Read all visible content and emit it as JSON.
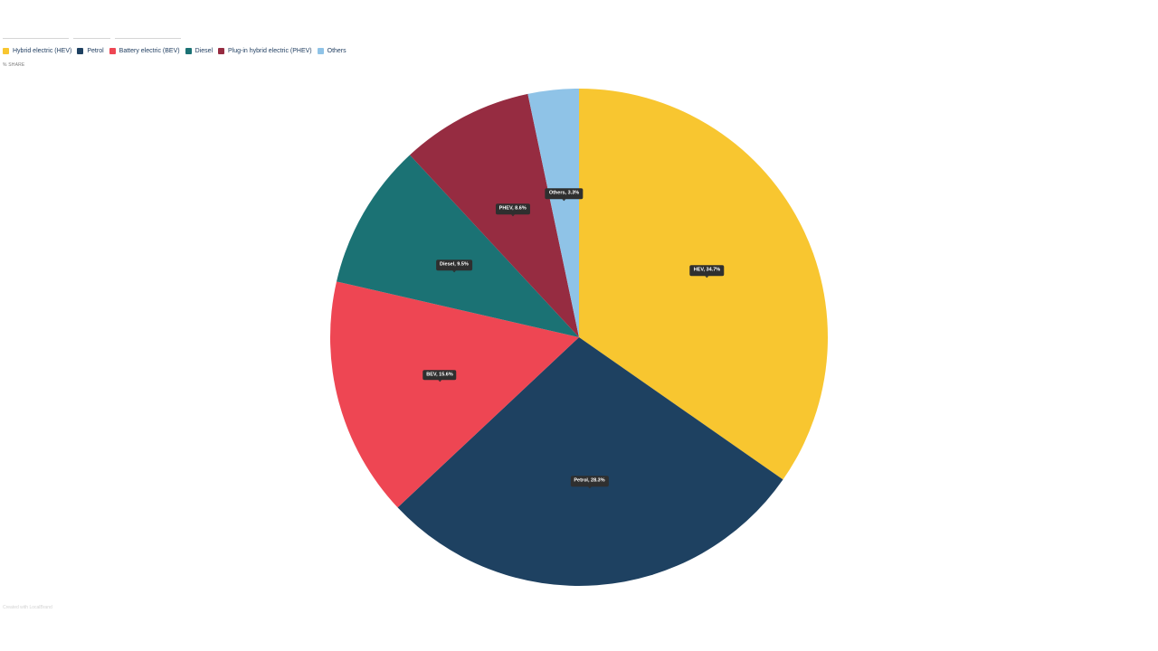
{
  "colors": {
    "hev": "#f8c630",
    "petrol": "#1e4161",
    "bev": "#ee4653",
    "diesel": "#1b7274",
    "phev": "#962c41",
    "others": "#8fc3e7",
    "legend_text": "#1d3b5e"
  },
  "unit_label": "% SHARE",
  "credit": "Created with LocalBrand",
  "chart_data": {
    "type": "pie",
    "title": "",
    "legend_position": "top-left",
    "unit": "% SHARE",
    "slices": [
      {
        "key": "hev",
        "legend": "Hybrid electric (HEV)",
        "label": "HEV, 34.7%",
        "value": 34.7,
        "color": "#f8c630"
      },
      {
        "key": "petrol",
        "legend": "Petrol",
        "label": "Petrol, 28.3%",
        "value": 28.3,
        "color": "#1e4161"
      },
      {
        "key": "bev",
        "legend": "Battery electric (BEV)",
        "label": "BEV, 15.6%",
        "value": 15.6,
        "color": "#ee4653"
      },
      {
        "key": "diesel",
        "legend": "Diesel",
        "label": "Diesel, 9.5%",
        "value": 9.5,
        "color": "#1b7274"
      },
      {
        "key": "phev",
        "legend": "Plug-in hybrid electric (PHEV)",
        "label": "PHEV, 8.6%",
        "value": 8.6,
        "color": "#962c41"
      },
      {
        "key": "others",
        "legend": "Others",
        "label": "Others, 3.3%",
        "value": 3.3,
        "color": "#8fc3e7"
      }
    ]
  }
}
